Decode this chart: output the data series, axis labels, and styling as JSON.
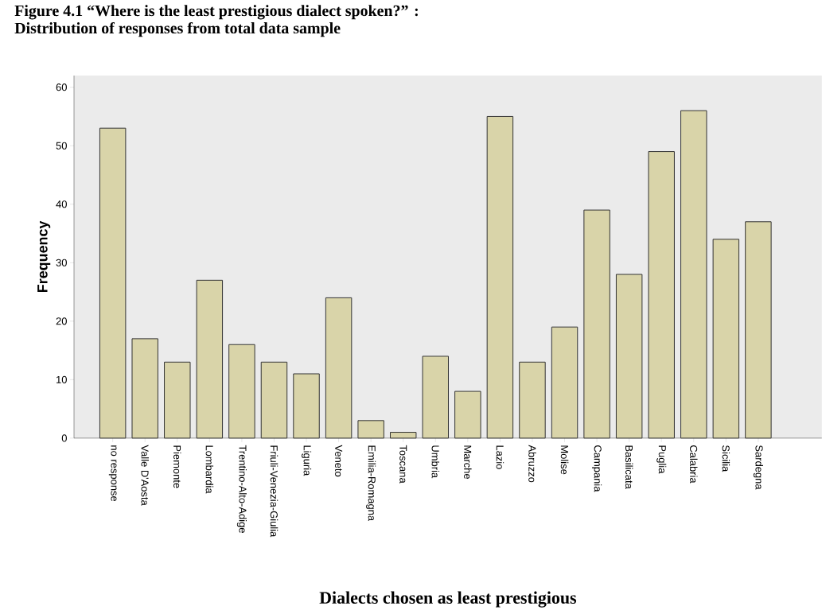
{
  "chart_data": {
    "type": "bar",
    "title": "Figure 4.1 “Where is the least prestigious dialect spoken?” :",
    "subtitle": "Distribution of responses from total data sample",
    "xlabel": "Dialects chosen as least prestigious",
    "ylabel": "Frequency",
    "categories": [
      "no response",
      "Valle D'Aosta",
      "Piemonte",
      "Lombardia",
      "Trentino-Alto-Adige",
      "Friuli-Venezia-Giulia",
      "Liguria",
      "Veneto",
      "Emilia-Romagna",
      "Toscana",
      "Umbria",
      "Marche",
      "Lazio",
      "Abruzzo",
      "Molise",
      "Campania",
      "Basilicata",
      "Puglia",
      "Calabria",
      "Sicilia",
      "Sardegna"
    ],
    "values": [
      53,
      17,
      13,
      27,
      16,
      13,
      11,
      24,
      3,
      1,
      14,
      8,
      55,
      13,
      19,
      39,
      28,
      49,
      56,
      34,
      37
    ],
    "color": "#d9d4a9",
    "ylim": [
      0,
      62
    ],
    "yticks": [
      0,
      10,
      20,
      30,
      40,
      50,
      60
    ]
  }
}
